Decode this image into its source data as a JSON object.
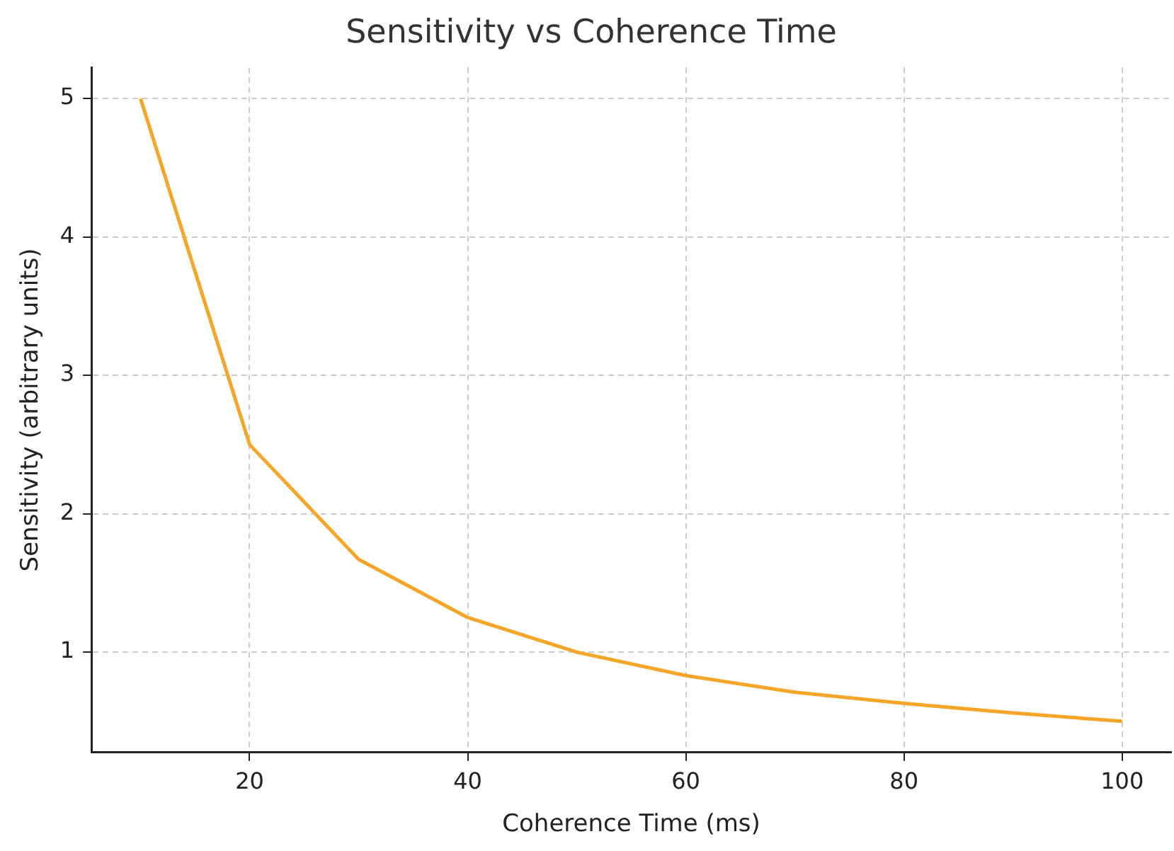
{
  "chart_data": {
    "type": "line",
    "title": "Sensitivity vs Coherence Time",
    "xlabel": "Coherence Time (ms)",
    "ylabel": "Sensitivity (arbitrary units)",
    "x": [
      10,
      20,
      30,
      40,
      50,
      60,
      70,
      80,
      90,
      100
    ],
    "series": [
      {
        "color": "#f5a628",
        "values": [
          5,
          2.5,
          1.67,
          1.25,
          1,
          0.83,
          0.71,
          0.63,
          0.56,
          0.5
        ]
      }
    ],
    "xlim": [
      5.5,
      104.5
    ],
    "ylim": [
      0.275,
      5.225
    ],
    "xticks": [
      20,
      40,
      60,
      80,
      100
    ],
    "yticks": [
      1,
      2,
      3,
      4,
      5
    ],
    "grid": true
  }
}
